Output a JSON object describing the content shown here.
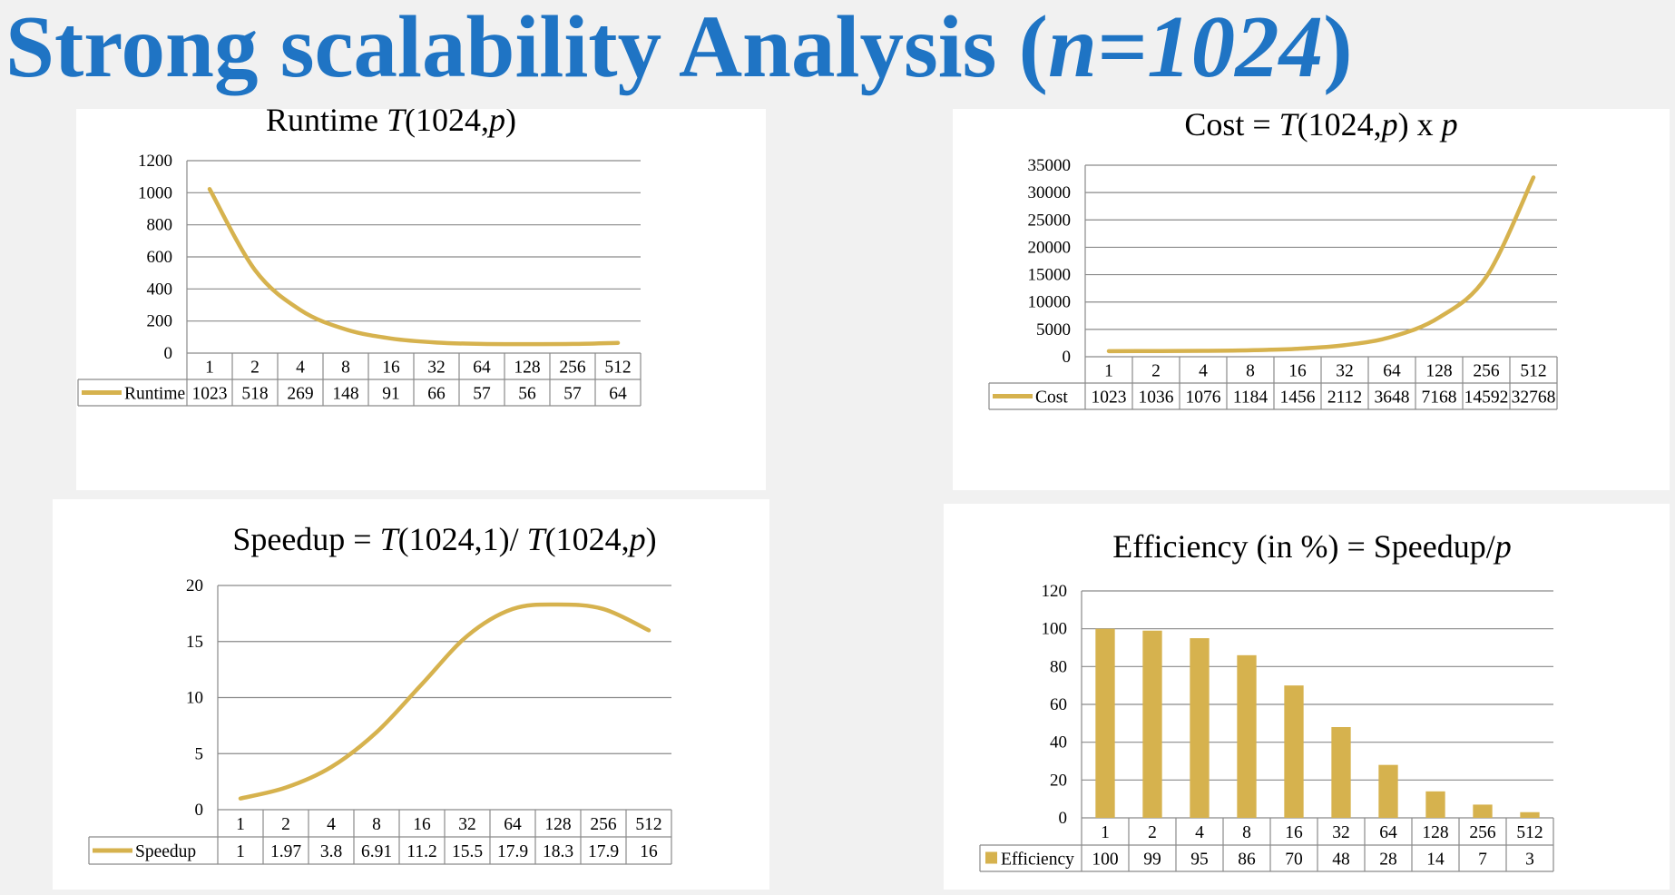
{
  "page": {
    "title_main": "Strong scalability Analysis (",
    "title_var": "n=1024",
    "title_close": ")"
  },
  "series_color": "#d6b24e",
  "chart_data": [
    {
      "id": "runtime",
      "type": "line",
      "title_parts": [
        "Runtime ",
        "T",
        "(1024,",
        "p",
        ")"
      ],
      "categories": [
        "1",
        "2",
        "4",
        "8",
        "16",
        "32",
        "64",
        "128",
        "256",
        "512"
      ],
      "series": [
        {
          "name": "Runtime",
          "values": [
            1023,
            518,
            269,
            148,
            91,
            66,
            57,
            56,
            57,
            64
          ]
        }
      ],
      "table_values": [
        "1023",
        "518",
        "269",
        "148",
        "91",
        "66",
        "57",
        "56",
        "57",
        "64"
      ],
      "y_ticks": [
        "0",
        "200",
        "400",
        "600",
        "800",
        "1000",
        "1200"
      ],
      "ylim": [
        0,
        1200
      ],
      "grid": true,
      "legend": "data-table"
    },
    {
      "id": "cost",
      "type": "line",
      "title_parts": [
        "Cost = ",
        "T",
        "(1024,",
        "p",
        ") x ",
        "p",
        ""
      ],
      "categories": [
        "1",
        "2",
        "4",
        "8",
        "16",
        "32",
        "64",
        "128",
        "256",
        "512"
      ],
      "series": [
        {
          "name": "Cost",
          "values": [
            1023,
            1036,
            1076,
            1184,
            1456,
            2112,
            3648,
            7168,
            14592,
            32768
          ]
        }
      ],
      "table_values": [
        "1023",
        "1036",
        "1076",
        "1184",
        "1456",
        "2112",
        "3648",
        "7168",
        "14592",
        "32768"
      ],
      "y_ticks": [
        "0",
        "5000",
        "10000",
        "15000",
        "20000",
        "25000",
        "30000",
        "35000"
      ],
      "ylim": [
        0,
        35000
      ],
      "grid": true,
      "legend": "data-table"
    },
    {
      "id": "speedup",
      "type": "line",
      "title_parts": [
        "Speedup = ",
        "T",
        "(1024,1)/ ",
        "T",
        "(1024,",
        "p",
        ")"
      ],
      "categories": [
        "1",
        "2",
        "4",
        "8",
        "16",
        "32",
        "64",
        "128",
        "256",
        "512"
      ],
      "series": [
        {
          "name": "Speedup",
          "values": [
            1,
            1.97,
            3.8,
            6.91,
            11.2,
            15.5,
            17.9,
            18.3,
            17.9,
            16
          ]
        }
      ],
      "table_values": [
        "1",
        "1.97",
        "3.8",
        "6.91",
        "11.2",
        "15.5",
        "17.9",
        "18.3",
        "17.9",
        "16"
      ],
      "y_ticks": [
        "0",
        "5",
        "10",
        "15",
        "20"
      ],
      "ylim": [
        0,
        20
      ],
      "grid": true,
      "legend": "data-table"
    },
    {
      "id": "efficiency",
      "type": "bar",
      "title_parts": [
        "Efficiency (in %) = Speedup/",
        "p",
        ""
      ],
      "categories": [
        "1",
        "2",
        "4",
        "8",
        "16",
        "32",
        "64",
        "128",
        "256",
        "512"
      ],
      "series": [
        {
          "name": "Efficiency",
          "values": [
            100,
            99,
            95,
            86,
            70,
            48,
            28,
            14,
            7,
            3
          ]
        }
      ],
      "table_values": [
        "100",
        "99",
        "95",
        "86",
        "70",
        "48",
        "28",
        "14",
        "7",
        "3"
      ],
      "y_ticks": [
        "0",
        "20",
        "40",
        "60",
        "80",
        "100",
        "120"
      ],
      "ylim": [
        0,
        120
      ],
      "grid": true,
      "legend": "data-table"
    }
  ]
}
